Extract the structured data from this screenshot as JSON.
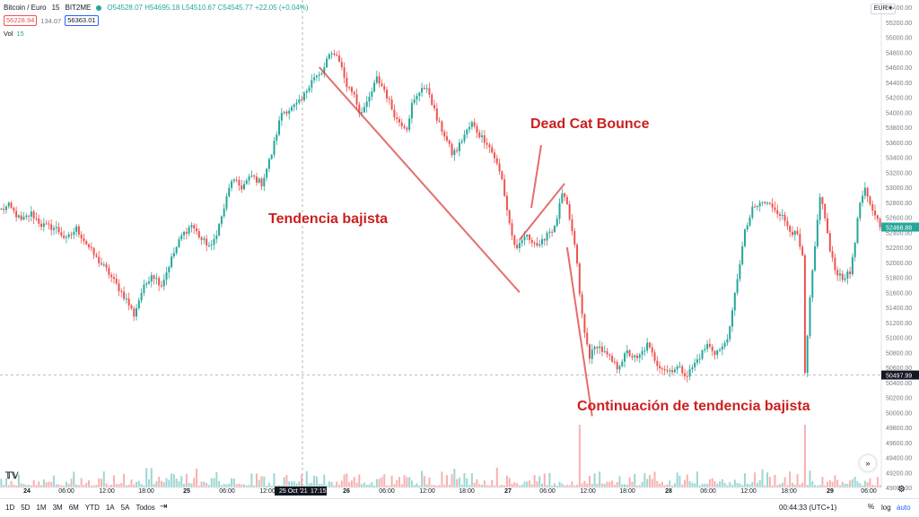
{
  "header": {
    "symbol": "Bitcoin / Euro",
    "interval": "15",
    "exchange": "BIT2ME",
    "ohlc": "O54528.07 H54695.18 L54510.67 C54545.77 +22.05 (+0.04%)"
  },
  "bidask": {
    "bid": "56228.94",
    "spread": "134.07",
    "ask": "56363.01"
  },
  "volume": {
    "label": "Vol",
    "value": "15"
  },
  "currency": "EUR",
  "clock": "00:44:33 (UTC+1)",
  "controls": {
    "percent": "%",
    "log": "log",
    "auto": "auto"
  },
  "ranges": [
    "1D",
    "5D",
    "1M",
    "3M",
    "6M",
    "YTD",
    "1A",
    "5A",
    "Todos"
  ],
  "icons": {
    "goto": "goto-date-icon",
    "scroll": "scroll-right-icon",
    "gear": "settings-gear-icon",
    "logo": "tradingview-logo-icon"
  },
  "colors": {
    "up": "#26a69a",
    "down": "#ef5350",
    "annotation": "#cc1f1f",
    "axis": "#787b86"
  },
  "chart_data": {
    "type": "candlestick",
    "title": "",
    "ylabel": "",
    "ylim": [
      49000,
      55400
    ],
    "y_ticks": [
      49000,
      49200,
      49400,
      49600,
      49800,
      50000,
      50200,
      50400,
      50600,
      50800,
      51000,
      51200,
      51400,
      51600,
      51800,
      52000,
      52200,
      52400,
      52600,
      52800,
      53000,
      53200,
      53400,
      53600,
      53800,
      54000,
      54200,
      54400,
      54600,
      54800,
      55000,
      55200,
      55400
    ],
    "x_ticks": [
      "24",
      "06:00",
      "12:00",
      "18:00",
      "25",
      "06:00",
      "12:00",
      "25 Oct '21",
      "17:15",
      "26",
      "06:00",
      "12:00",
      "18:00",
      "27",
      "06:00",
      "12:00",
      "18:00",
      "28",
      "06:00",
      "12:00",
      "18:00",
      "29",
      "06:00"
    ],
    "crosshair_price": "50497.99",
    "last_price": "52468.88",
    "anchors": [
      [
        0,
        52700
      ],
      [
        3,
        52750
      ],
      [
        8,
        52550
      ],
      [
        12,
        52650
      ],
      [
        16,
        52500
      ],
      [
        22,
        52450
      ],
      [
        26,
        52300
      ],
      [
        30,
        52450
      ],
      [
        34,
        52250
      ],
      [
        38,
        52050
      ],
      [
        42,
        51900
      ],
      [
        46,
        51700
      ],
      [
        50,
        51500
      ],
      [
        53,
        51300
      ],
      [
        56,
        51600
      ],
      [
        60,
        51850
      ],
      [
        64,
        51700
      ],
      [
        68,
        52050
      ],
      [
        72,
        52350
      ],
      [
        76,
        52500
      ],
      [
        80,
        52300
      ],
      [
        84,
        52200
      ],
      [
        88,
        52600
      ],
      [
        92,
        53100
      ],
      [
        96,
        53000
      ],
      [
        100,
        53150
      ],
      [
        104,
        53050
      ],
      [
        108,
        53450
      ],
      [
        112,
        54000
      ],
      [
        116,
        54050
      ],
      [
        120,
        54150
      ],
      [
        124,
        54450
      ],
      [
        128,
        54500
      ],
      [
        130,
        54700
      ],
      [
        133,
        54800
      ],
      [
        135,
        54700
      ],
      [
        138,
        54350
      ],
      [
        141,
        54250
      ],
      [
        143,
        54000
      ],
      [
        146,
        54100
      ],
      [
        150,
        54450
      ],
      [
        153,
        54300
      ],
      [
        156,
        54050
      ],
      [
        158,
        53900
      ],
      [
        162,
        53800
      ],
      [
        164,
        54100
      ],
      [
        166,
        54200
      ],
      [
        168,
        54350
      ],
      [
        171,
        54250
      ],
      [
        174,
        53900
      ],
      [
        177,
        53700
      ],
      [
        180,
        53450
      ],
      [
        182,
        53500
      ],
      [
        185,
        53700
      ],
      [
        188,
        53850
      ],
      [
        191,
        53700
      ],
      [
        194,
        53600
      ],
      [
        197,
        53400
      ],
      [
        200,
        53100
      ],
      [
        202,
        52700
      ],
      [
        204,
        52350
      ],
      [
        206,
        52150
      ],
      [
        209,
        52350
      ],
      [
        212,
        52300
      ],
      [
        215,
        52200
      ],
      [
        218,
        52400
      ],
      [
        221,
        52450
      ],
      [
        224,
        52900
      ],
      [
        226,
        52750
      ],
      [
        228,
        52400
      ],
      [
        230,
        52000
      ],
      [
        231,
        51550
      ],
      [
        233,
        51050
      ],
      [
        235,
        50750
      ],
      [
        238,
        50900
      ],
      [
        242,
        50750
      ],
      [
        246,
        50600
      ],
      [
        250,
        50800
      ],
      [
        254,
        50700
      ],
      [
        258,
        50900
      ],
      [
        262,
        50650
      ],
      [
        266,
        50550
      ],
      [
        270,
        50600
      ],
      [
        274,
        50500
      ],
      [
        278,
        50700
      ],
      [
        282,
        50900
      ],
      [
        285,
        50800
      ],
      [
        288,
        50850
      ],
      [
        291,
        51100
      ],
      [
        294,
        51800
      ],
      [
        297,
        52400
      ],
      [
        300,
        52700
      ],
      [
        304,
        52800
      ],
      [
        308,
        52750
      ],
      [
        311,
        52650
      ],
      [
        314,
        52500
      ],
      [
        316,
        52400
      ],
      [
        318,
        52350
      ],
      [
        320,
        52050
      ],
      [
        321,
        50500
      ],
      [
        323,
        51500
      ],
      [
        325,
        52200
      ],
      [
        327,
        52900
      ],
      [
        329,
        52600
      ],
      [
        331,
        52150
      ],
      [
        333,
        51900
      ],
      [
        336,
        51800
      ],
      [
        339,
        51850
      ],
      [
        341,
        52300
      ],
      [
        343,
        52800
      ],
      [
        345,
        52950
      ],
      [
        347,
        52750
      ],
      [
        349,
        52650
      ],
      [
        351,
        52468.88
      ]
    ],
    "annotations": [
      {
        "text": "Tendencia bajista",
        "line": [
          [
            127,
            54600
          ],
          [
            207,
            51600
          ]
        ]
      },
      {
        "text": "Dead Cat Bounce",
        "line": [
          [
            207,
            52300
          ],
          [
            225,
            53050
          ]
        ],
        "arrow_to": [
          216,
          52700
        ]
      },
      {
        "text": "Continuación de tendencia bajista",
        "line": [
          [
            226,
            52200
          ],
          [
            236,
            49950
          ]
        ]
      }
    ]
  }
}
